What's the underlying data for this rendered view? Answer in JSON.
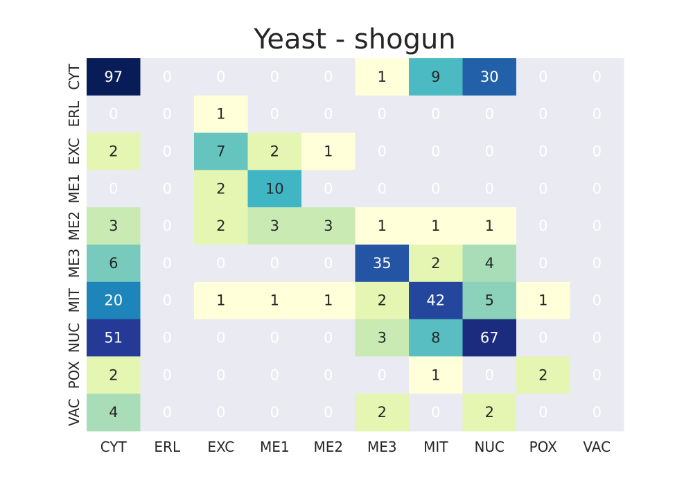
{
  "chart_data": {
    "type": "heatmap",
    "title": "Yeast - shogun",
    "x_categories": [
      "CYT",
      "ERL",
      "EXC",
      "ME1",
      "ME2",
      "ME3",
      "MIT",
      "NUC",
      "POX",
      "VAC"
    ],
    "y_categories": [
      "CYT",
      "ERL",
      "EXC",
      "ME1",
      "ME2",
      "ME3",
      "MIT",
      "NUC",
      "POX",
      "VAC"
    ],
    "values": [
      [
        97,
        0,
        0,
        0,
        0,
        1,
        9,
        30,
        0,
        0
      ],
      [
        0,
        0,
        1,
        0,
        0,
        0,
        0,
        0,
        0,
        0
      ],
      [
        2,
        0,
        7,
        2,
        1,
        0,
        0,
        0,
        0,
        0
      ],
      [
        0,
        0,
        2,
        10,
        0,
        0,
        0,
        0,
        0,
        0
      ],
      [
        3,
        0,
        2,
        3,
        3,
        1,
        1,
        1,
        0,
        0
      ],
      [
        6,
        0,
        0,
        0,
        0,
        35,
        2,
        4,
        0,
        0
      ],
      [
        20,
        0,
        1,
        1,
        1,
        2,
        42,
        5,
        1,
        0
      ],
      [
        51,
        0,
        0,
        0,
        0,
        3,
        8,
        67,
        0,
        0
      ],
      [
        2,
        0,
        0,
        0,
        0,
        0,
        1,
        0,
        2,
        0
      ],
      [
        4,
        0,
        0,
        0,
        0,
        2,
        0,
        2,
        0,
        0
      ]
    ],
    "color_scale": "log",
    "colormap": "YlGnBu",
    "zero_cell_color": "#eaeaf2",
    "zero_text_color": "#ffffff",
    "colorbar": false,
    "grid": false
  }
}
